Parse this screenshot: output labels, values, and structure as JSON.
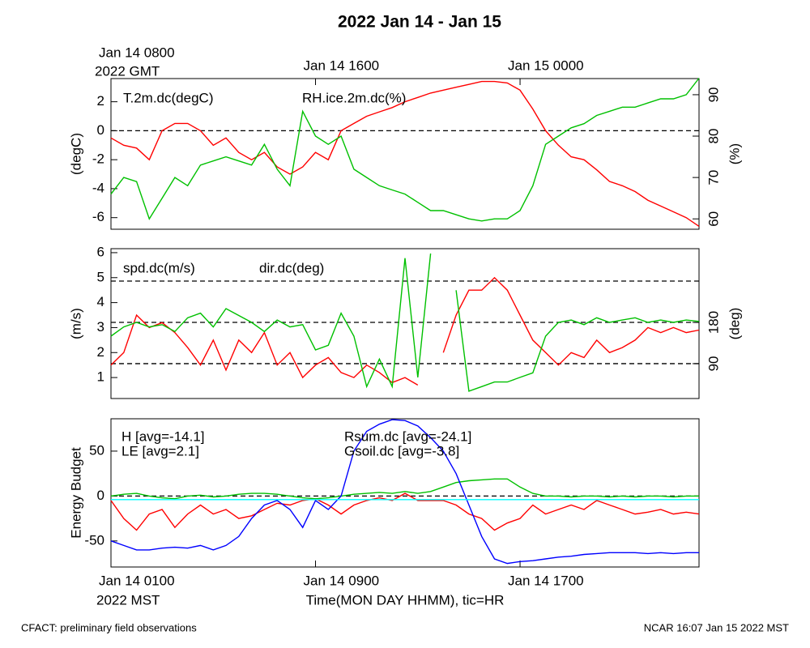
{
  "title": "2022 Jan 14 - Jan 15",
  "footer_left": "CFACT: preliminary field observations",
  "footer_right": "NCAR 16:07 Jan 15 2022 MST",
  "chart_data": [
    {
      "type": "line",
      "xlim": [
        0,
        23
      ],
      "x": [
        0,
        0.5,
        1,
        1.5,
        2,
        2.5,
        3,
        3.5,
        4,
        4.5,
        5,
        5.5,
        6,
        6.5,
        7,
        7.5,
        8,
        8.5,
        9,
        9.5,
        10,
        10.5,
        11,
        11.5,
        12,
        12.5,
        13,
        13.5,
        14,
        14.5,
        15,
        15.5,
        16,
        16.5,
        17,
        17.5,
        18,
        18.5,
        19,
        19.5,
        20,
        20.5,
        21,
        21.5,
        22,
        22.5,
        23
      ],
      "x2ticks": [
        {
          "value": 0,
          "label": "Jan 14 0800"
        },
        {
          "value": 8,
          "label": "Jan 14 1600"
        },
        {
          "value": 16,
          "label": "Jan 15 0000"
        }
      ],
      "x2note": "2022 GMT",
      "ylim": [
        -6.8,
        3.6
      ],
      "yticks": [
        -6,
        -4,
        -2,
        0,
        2
      ],
      "ylabel": "(degC)",
      "y2lim": [
        57.5,
        93.9
      ],
      "y2ticks": [
        60,
        70,
        80,
        90
      ],
      "y2label": "(%)",
      "reflines": [
        0
      ],
      "series": [
        {
          "name": "T.2m.dc(degC)",
          "color": "#ff0000",
          "axis": "y",
          "values": [
            -0.5,
            -1,
            -1.2,
            -2,
            0,
            0.5,
            0.5,
            0,
            -1,
            -0.5,
            -1.5,
            -2,
            -1.5,
            -2.5,
            -3,
            -2.5,
            -1.5,
            -2,
            0,
            0.5,
            1,
            1.3,
            1.6,
            2,
            2.3,
            2.6,
            2.8,
            3,
            3.2,
            3.4,
            3.4,
            3.3,
            2.8,
            1.5,
            0,
            -1,
            -1.8,
            -2,
            -2.7,
            -3.5,
            -3.8,
            -4.2,
            -4.8,
            -5.2,
            -5.6,
            -6,
            -6.6
          ]
        },
        {
          "name": "RH.ice.2m.dc(%)",
          "color": "#00c000",
          "axis": "y2",
          "values": [
            66,
            70,
            69,
            60,
            65,
            70,
            68,
            73,
            74,
            75,
            74,
            73,
            78,
            72,
            68,
            86,
            80,
            78,
            80,
            72,
            70,
            68,
            67,
            66,
            64,
            62,
            62,
            61,
            60,
            59.5,
            60,
            60,
            62,
            68,
            78,
            80,
            82,
            83,
            85,
            86,
            87,
            87,
            88,
            89,
            89,
            90,
            94
          ]
        }
      ]
    },
    {
      "type": "line",
      "xlim": [
        0,
        23
      ],
      "x": [
        0,
        0.5,
        1,
        1.5,
        2,
        2.5,
        3,
        3.5,
        4,
        4.5,
        5,
        5.5,
        6,
        6.5,
        7,
        7.5,
        8,
        8.5,
        9,
        9.5,
        10,
        10.5,
        11,
        11.5,
        12,
        12.5,
        13,
        13.5,
        14,
        14.5,
        15,
        15.5,
        16,
        16.5,
        17,
        17.5,
        18,
        18.5,
        19,
        19.5,
        20,
        20.5,
        21,
        21.5,
        22,
        22.5,
        23
      ],
      "ylim": [
        0.16,
        6.16
      ],
      "yticks": [
        1,
        2,
        3,
        4,
        5,
        6
      ],
      "ylabel": "(m/s)",
      "y2lim": [
        14,
        340.6
      ],
      "y2ticks": [
        90,
        180
      ],
      "y2label": "(deg)",
      "y2reflines": [
        90,
        180,
        270
      ],
      "series": [
        {
          "name": "spd.dc(m/s)",
          "color": "#ff0000",
          "axis": "y",
          "values": [
            1.5,
            2,
            3.5,
            3,
            3.2,
            2.8,
            2.2,
            1.5,
            2.5,
            1.3,
            2.5,
            2,
            2.8,
            1.5,
            2,
            1,
            1.5,
            1.8,
            1.2,
            1,
            1.5,
            1.2,
            0.8,
            1,
            0.7,
            null,
            2,
            3.5,
            4.5,
            4.5,
            5,
            4.5,
            3.5,
            2.5,
            2,
            1.5,
            2,
            1.8,
            2.5,
            2,
            2.2,
            2.5,
            3,
            2.8,
            3,
            2.8,
            2.9
          ]
        },
        {
          "name": "dir.dc(deg)",
          "color": "#00c000",
          "axis": "y2",
          "values": [
            150,
            170,
            180,
            170,
            175,
            160,
            190,
            200,
            170,
            210,
            195,
            180,
            160,
            185,
            170,
            175,
            120,
            130,
            200,
            150,
            40,
            100,
            40,
            320,
            60,
            330,
            null,
            250,
            30,
            40,
            50,
            50,
            60,
            70,
            150,
            180,
            185,
            175,
            190,
            180,
            185,
            190,
            180,
            185,
            180,
            185,
            182
          ]
        }
      ]
    },
    {
      "type": "line",
      "xlim": [
        0,
        23
      ],
      "x": [
        0,
        0.5,
        1,
        1.5,
        2,
        2.5,
        3,
        3.5,
        4,
        4.5,
        5,
        5.5,
        6,
        6.5,
        7,
        7.5,
        8,
        8.5,
        9,
        9.5,
        10,
        10.5,
        11,
        11.5,
        12,
        12.5,
        13,
        13.5,
        14,
        14.5,
        15,
        15.5,
        16,
        16.5,
        17,
        17.5,
        18,
        18.5,
        19,
        19.5,
        20,
        20.5,
        21,
        21.5,
        22,
        22.5,
        23
      ],
      "xticks": [
        {
          "value": 0,
          "label": "Jan 14 0100"
        },
        {
          "value": 8,
          "label": "Jan 14 0900"
        },
        {
          "value": 16,
          "label": "Jan 14 1700"
        }
      ],
      "xnote": "2022 MST",
      "xlabel": "Time(MON DAY HHMM), tic=HR",
      "ylim": [
        -79,
        86
      ],
      "yticks": [
        -50,
        0,
        50
      ],
      "ylabel": "Energy Budget",
      "reflines": [
        0
      ],
      "series": [
        {
          "name": "H [avg=-14.1]",
          "color": "#ff0000",
          "axis": "y",
          "values": [
            -5,
            -25,
            -38,
            -20,
            -15,
            -35,
            -20,
            -10,
            -20,
            -15,
            -25,
            -22,
            -15,
            -8,
            -10,
            -5,
            -3,
            -10,
            -20,
            -10,
            -5,
            -2,
            -5,
            3,
            -5,
            -5,
            -5,
            -10,
            -20,
            -25,
            -38,
            -30,
            -25,
            -10,
            -20,
            -15,
            -10,
            -15,
            -5,
            -10,
            -15,
            -20,
            -18,
            -15,
            -20,
            -18,
            -20
          ]
        },
        {
          "name": "LE [avg=2.1]",
          "color": "#00c000",
          "axis": "y",
          "values": [
            0,
            2,
            3,
            0,
            -2,
            -3,
            0,
            1,
            -1,
            0,
            2,
            3,
            3,
            2,
            0,
            -2,
            -3,
            -2,
            0,
            2,
            3,
            4,
            3,
            5,
            3,
            5,
            10,
            15,
            17,
            18,
            19,
            19,
            10,
            3,
            0,
            0,
            -1,
            0,
            0,
            -1,
            0,
            -1,
            0,
            0,
            -1,
            0,
            0
          ]
        },
        {
          "name": "Rsum.dc [avg=-24.1]",
          "color": "#0000ff",
          "axis": "y",
          "values": [
            -50,
            -55,
            -60,
            -60,
            -58,
            -57,
            -58,
            -55,
            -60,
            -55,
            -45,
            -25,
            -10,
            -5,
            -15,
            -35,
            -5,
            -15,
            0,
            50,
            72,
            80,
            85,
            84,
            78,
            65,
            50,
            25,
            -10,
            -45,
            -70,
            -75,
            -73,
            -72,
            -70,
            -68,
            -67,
            -65,
            -64,
            -63,
            -63,
            -63,
            -64,
            -63,
            -64,
            -63,
            -63
          ]
        },
        {
          "name": "Gsoil.dc [avg=-3.8]",
          "color": "#00ffff",
          "axis": "y",
          "values": [
            -4,
            -4,
            -4,
            -4,
            -4,
            -4,
            -4,
            -4,
            -4,
            -4,
            -4,
            -4,
            -4,
            -4,
            -4,
            -4,
            -4,
            -4,
            -4,
            -4,
            -4,
            -4,
            -4,
            -4,
            -4,
            -4,
            -4,
            -4,
            -4,
            -4,
            -4,
            -4,
            -4,
            -4,
            -4,
            -4,
            -4,
            -4,
            -4,
            -4,
            -4,
            -4,
            -4,
            -4,
            -4,
            -4,
            -4
          ]
        }
      ]
    }
  ]
}
